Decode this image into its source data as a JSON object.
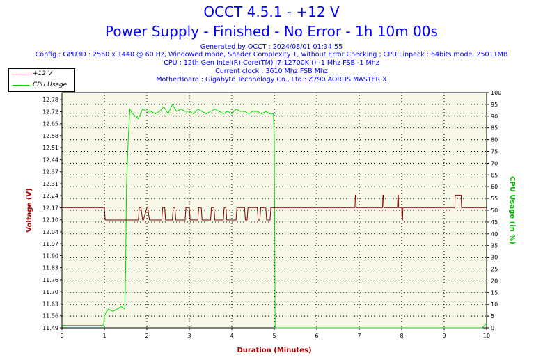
{
  "header": {
    "title": "OCCT 4.5.1 - +12 V",
    "subtitle": "Power Supply - Finished - No Error - 1h 10m 00s",
    "generated": "Generated by OCCT : 2024/08/01 01:34:55",
    "config": "Config : GPU3D : 2560 x 1440 @ 60 Hz, Windowed mode, Shader Complexity 1, without Error Checking ; CPU:Linpack : 64bits mode, 25011MB",
    "cpu": "CPU : 12th Gen Intel(R) Core(TM) i7-12700K () -1 Mhz FSB -1 Mhz",
    "clock": "Current clock : 3610 Mhz FSB  Mhz",
    "motherboard": "MotherBoard : Gigabyte Technology Co., Ltd.: Z790 AORUS MASTER X"
  },
  "legend": [
    {
      "label": "+12 V",
      "color": "#800000"
    },
    {
      "label": "CPU Usage",
      "color": "#00dd00"
    }
  ],
  "chart_data": {
    "type": "line",
    "xlabel": "Duration (Minutes)",
    "ylabel_left": "Voltage (V)",
    "ylabel_right": "CPU Usage (in %)",
    "xlim": [
      0,
      10
    ],
    "x_ticks": [
      "0",
      "1",
      "2",
      "3",
      "4",
      "5",
      "6",
      "7",
      "8",
      "9",
      "10"
    ],
    "ylim_left": [
      11.49,
      12.82
    ],
    "y_ticks_left": [
      "11.49",
      "11.56",
      "11.63",
      "11.70",
      "11.76",
      "11.83",
      "11.90",
      "11.97",
      "12.04",
      "12.10",
      "12.17",
      "12.24",
      "12.31",
      "12.37",
      "12.44",
      "12.51",
      "12.58",
      "12.65",
      "12.72",
      "12.78"
    ],
    "ylim_right": [
      0,
      100
    ],
    "y_ticks_right": [
      "0",
      "5",
      "10",
      "15",
      "20",
      "25",
      "30",
      "35",
      "40",
      "45",
      "50",
      "55",
      "60",
      "65",
      "70",
      "75",
      "80",
      "85",
      "90",
      "95",
      "100"
    ],
    "grid": true,
    "series": [
      {
        "name": "+12 V",
        "color": "#800000",
        "x": [
          0,
          1.0,
          1.02,
          1.8,
          1.82,
          1.86,
          1.9,
          1.92,
          2.0,
          2.02,
          2.06,
          2.1,
          2.12,
          2.35,
          2.37,
          2.42,
          2.44,
          2.6,
          2.62,
          2.66,
          2.68,
          2.9,
          2.92,
          3.0,
          3.02,
          3.2,
          3.22,
          3.28,
          3.3,
          3.5,
          3.52,
          3.58,
          3.6,
          3.8,
          3.82,
          3.86,
          3.88,
          4.1,
          4.12,
          4.3,
          4.32,
          4.36,
          4.38,
          4.6,
          4.62,
          4.66,
          4.68,
          4.8,
          4.82,
          4.9,
          4.92,
          5.0,
          5.02,
          6.9,
          6.91,
          6.92,
          6.93,
          7.55,
          7.56,
          7.57,
          7.58,
          7.9,
          7.91,
          7.92,
          7.93,
          8.0,
          8.01,
          8.02,
          8.03,
          9.25,
          9.26,
          9.4,
          9.41,
          10
        ],
        "y": [
          12.17,
          12.17,
          12.1,
          12.1,
          12.17,
          12.17,
          12.1,
          12.1,
          12.17,
          12.17,
          12.1,
          12.1,
          12.1,
          12.1,
          12.17,
          12.17,
          12.1,
          12.1,
          12.17,
          12.17,
          12.1,
          12.1,
          12.17,
          12.17,
          12.1,
          12.1,
          12.17,
          12.17,
          12.1,
          12.1,
          12.17,
          12.17,
          12.1,
          12.1,
          12.17,
          12.17,
          12.1,
          12.1,
          12.17,
          12.17,
          12.1,
          12.1,
          12.17,
          12.17,
          12.1,
          12.1,
          12.17,
          12.17,
          12.1,
          12.1,
          12.17,
          12.17,
          12.17,
          12.17,
          12.24,
          12.24,
          12.17,
          12.17,
          12.24,
          12.24,
          12.17,
          12.17,
          12.24,
          12.24,
          12.17,
          12.17,
          12.1,
          12.1,
          12.17,
          12.17,
          12.24,
          12.24,
          12.17,
          12.17
        ]
      },
      {
        "name": "CPU Usage",
        "color": "#00dd00",
        "x": [
          0,
          0.5,
          0.98,
          1.0,
          1.05,
          1.1,
          1.2,
          1.3,
          1.4,
          1.48,
          1.5,
          1.52,
          1.56,
          1.6,
          1.66,
          1.8,
          1.9,
          2.0,
          2.1,
          2.2,
          2.3,
          2.4,
          2.5,
          2.6,
          2.7,
          2.8,
          2.9,
          3.0,
          3.1,
          3.2,
          3.3,
          3.4,
          3.5,
          3.6,
          3.7,
          3.8,
          3.9,
          4.0,
          4.1,
          4.2,
          4.3,
          4.4,
          4.5,
          4.6,
          4.7,
          4.8,
          4.9,
          4.98,
          5.0,
          5.02,
          5.5,
          6.0,
          6.5,
          7.0,
          7.5,
          8.0,
          8.5,
          9.0,
          9.5,
          9.9,
          10
        ],
        "y": [
          1,
          1,
          1,
          5,
          7,
          8,
          7,
          8,
          9,
          8,
          25,
          60,
          80,
          93,
          91,
          89,
          93,
          92,
          92,
          91,
          92,
          94,
          91,
          95,
          92,
          93,
          92,
          92,
          91,
          93,
          92,
          91,
          92,
          93,
          92,
          91,
          92,
          91,
          93,
          92,
          92,
          91,
          92,
          92,
          91,
          92,
          91,
          91,
          80,
          0,
          0,
          0,
          0,
          0,
          0,
          0,
          0,
          0,
          0,
          0,
          2
        ]
      }
    ]
  }
}
